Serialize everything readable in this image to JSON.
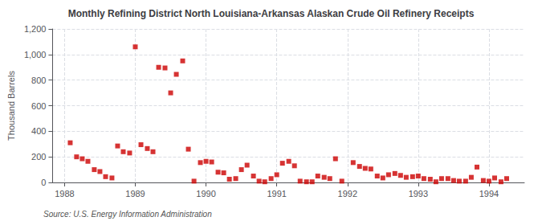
{
  "chart_data": {
    "type": "scatter",
    "title": "Monthly Refining District North Louisiana-Arkansas Alaskan Crude Oil Refinery Receipts",
    "ylabel": "Thousand Barrels",
    "annotations": [
      "Source: U.S. Energy Information Administration"
    ],
    "color": "#cc0000",
    "marker": "square",
    "grid": true,
    "xlim": [
      1987.83,
      1994.5
    ],
    "xticks": [
      1988,
      1989,
      1990,
      1991,
      1992,
      1993,
      1994
    ],
    "ylim": [
      0,
      1200
    ],
    "yticks": [
      0,
      200,
      400,
      600,
      800,
      {
        "value": 1000,
        "label": "1,000"
      },
      {
        "value": 1200,
        "label": "1,200"
      }
    ],
    "x": [
      1988.08,
      1988.17,
      1988.25,
      1988.33,
      1988.42,
      1988.5,
      1988.58,
      1988.67,
      1988.75,
      1988.83,
      1988.92,
      1989.0,
      1989.08,
      1989.17,
      1989.25,
      1989.33,
      1989.42,
      1989.5,
      1989.58,
      1989.67,
      1989.75,
      1989.83,
      1989.92,
      1990.0,
      1990.08,
      1990.17,
      1990.25,
      1990.33,
      1990.42,
      1990.5,
      1990.58,
      1990.67,
      1990.75,
      1990.83,
      1990.92,
      1991.0,
      1991.08,
      1991.17,
      1991.25,
      1991.33,
      1991.42,
      1991.5,
      1991.58,
      1991.67,
      1991.75,
      1991.83,
      1991.92,
      1992.08,
      1992.17,
      1992.25,
      1992.33,
      1992.42,
      1992.5,
      1992.58,
      1992.67,
      1992.75,
      1992.83,
      1992.92,
      1993.0,
      1993.08,
      1993.17,
      1993.25,
      1993.33,
      1993.42,
      1993.5,
      1993.58,
      1993.67,
      1993.75,
      1993.83,
      1993.92,
      1994.0,
      1994.08,
      1994.17,
      1994.25
    ],
    "values": [
      310,
      200,
      185,
      165,
      100,
      85,
      45,
      35,
      285,
      240,
      230,
      1060,
      295,
      265,
      240,
      900,
      895,
      700,
      845,
      950,
      260,
      10,
      155,
      165,
      160,
      80,
      75,
      25,
      30,
      100,
      135,
      50,
      10,
      5,
      30,
      60,
      150,
      165,
      130,
      10,
      5,
      5,
      50,
      40,
      30,
      185,
      10,
      155,
      125,
      110,
      105,
      50,
      35,
      60,
      70,
      55,
      40,
      45,
      50,
      30,
      25,
      5,
      30,
      30,
      15,
      10,
      10,
      40,
      120,
      15,
      10,
      35,
      5,
      30
    ]
  }
}
